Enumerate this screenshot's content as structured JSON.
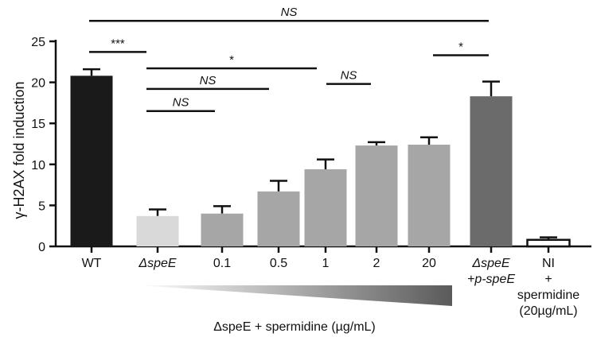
{
  "chart_data": {
    "type": "bar",
    "ylabel": "γ-H2AX fold induction",
    "xlabel": "ΔspeE + spermidine (µg/mL)",
    "ylim": [
      0,
      25
    ],
    "yticks": [
      0,
      5,
      10,
      15,
      20,
      25
    ],
    "categories": [
      {
        "lines": [
          "WT"
        ],
        "italic": [
          false
        ]
      },
      {
        "lines": [
          "ΔspeE"
        ],
        "italic": [
          true
        ]
      },
      {
        "lines": [
          "0.1"
        ],
        "italic": [
          false
        ]
      },
      {
        "lines": [
          "0.5"
        ],
        "italic": [
          false
        ]
      },
      {
        "lines": [
          "1"
        ],
        "italic": [
          false
        ]
      },
      {
        "lines": [
          "2"
        ],
        "italic": [
          false
        ]
      },
      {
        "lines": [
          "20"
        ],
        "italic": [
          false
        ]
      },
      {
        "lines": [
          "ΔspeE",
          "+p-speE"
        ],
        "italic": [
          true,
          true
        ]
      },
      {
        "lines": [
          "NI",
          "+",
          "spermidine",
          "(20µg/mL)"
        ],
        "italic": [
          false,
          false,
          false,
          false
        ]
      }
    ],
    "values": [
      20.8,
      3.7,
      4.0,
      6.7,
      9.4,
      12.3,
      12.4,
      18.3,
      0.8
    ],
    "errors": [
      0.8,
      0.8,
      0.9,
      1.3,
      1.2,
      0.4,
      0.9,
      1.8,
      0.3
    ],
    "colors": [
      "#1a1a1a",
      "#d9d9d9",
      "#a6a6a6",
      "#a6a6a6",
      "#a6a6a6",
      "#a6a6a6",
      "#a6a6a6",
      "#6b6b6b",
      "#ffffff"
    ],
    "significance": [
      {
        "from": 0,
        "to": 1,
        "label": "***",
        "y": 23.7
      },
      {
        "from": 0,
        "to": 8,
        "label": "NS",
        "y": 27.5,
        "italic": true
      },
      {
        "from": 1,
        "to": 4,
        "label": "*",
        "y": 21.7
      },
      {
        "from": 1,
        "to": 3,
        "label": "NS",
        "y": 19.2,
        "italic": true
      },
      {
        "from": 1,
        "to": 2,
        "label": "NS",
        "y": 16.5,
        "italic": true
      },
      {
        "from": 4,
        "to": 5,
        "label": "NS",
        "y": 19.8,
        "italic": true
      },
      {
        "from": 6,
        "to": 7,
        "label": "*",
        "y": 23.3
      }
    ],
    "gradient": {
      "from": "#ffffff",
      "to": "#5a5a5a"
    }
  }
}
